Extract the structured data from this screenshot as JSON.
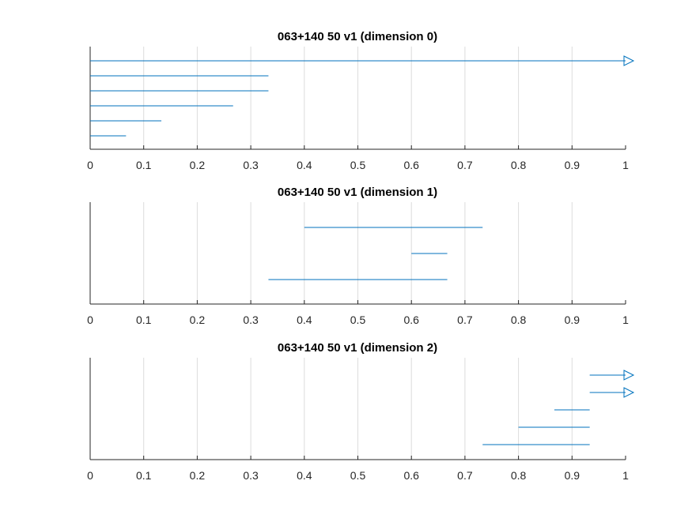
{
  "chart_data": [
    {
      "type": "barcode",
      "title": "063+140 50 v1 (dimension 0)",
      "xlim": [
        0,
        1
      ],
      "xticks": [
        "0",
        "0.1",
        "0.2",
        "0.3",
        "0.4",
        "0.5",
        "0.6",
        "0.7",
        "0.8",
        "0.9",
        "1"
      ],
      "grid": true,
      "color": "#0072bd",
      "intervals": [
        {
          "birth": 0,
          "death": 1,
          "infinite": true
        },
        {
          "birth": 0,
          "death": 0.333
        },
        {
          "birth": 0,
          "death": 0.333
        },
        {
          "birth": 0,
          "death": 0.267
        },
        {
          "birth": 0,
          "death": 0.133
        },
        {
          "birth": 0,
          "death": 0.067
        }
      ]
    },
    {
      "type": "barcode",
      "title": "063+140 50 v1 (dimension 1)",
      "xlim": [
        0,
        1
      ],
      "xticks": [
        "0",
        "0.1",
        "0.2",
        "0.3",
        "0.4",
        "0.5",
        "0.6",
        "0.7",
        "0.8",
        "0.9",
        "1"
      ],
      "grid": true,
      "color": "#0072bd",
      "intervals": [
        {
          "birth": 0.4,
          "death": 0.733
        },
        {
          "birth": 0.6,
          "death": 0.667
        },
        {
          "birth": 0.333,
          "death": 0.667
        }
      ]
    },
    {
      "type": "barcode",
      "title": "063+140 50 v1 (dimension 2)",
      "xlim": [
        0,
        1
      ],
      "xticks": [
        "0",
        "0.1",
        "0.2",
        "0.3",
        "0.4",
        "0.5",
        "0.6",
        "0.7",
        "0.8",
        "0.9",
        "1"
      ],
      "grid": true,
      "color": "#0072bd",
      "intervals": [
        {
          "birth": 0.933,
          "death": 1,
          "infinite": true
        },
        {
          "birth": 0.933,
          "death": 1,
          "infinite": true
        },
        {
          "birth": 0.867,
          "death": 0.933
        },
        {
          "birth": 0.8,
          "death": 0.933
        },
        {
          "birth": 0.733,
          "death": 0.933
        }
      ]
    }
  ]
}
